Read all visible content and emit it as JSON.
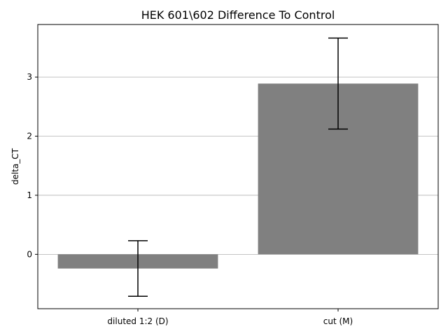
{
  "chart_data": {
    "type": "bar",
    "title": "HEK 601\\602 Difference To Control",
    "xlabel": "",
    "ylabel": "delta_CT",
    "categories": [
      "diluted 1:2 (D)",
      "cut (M)"
    ],
    "values": [
      -0.24,
      2.89
    ],
    "error": [
      0.47,
      0.77
    ],
    "ylim": [
      -0.92,
      3.89
    ],
    "yticks": [
      0,
      1,
      2,
      3
    ],
    "grid": "y-major",
    "bar_color": "#808080",
    "error_color": "#000000",
    "grid_color": "#b0b0b0"
  }
}
